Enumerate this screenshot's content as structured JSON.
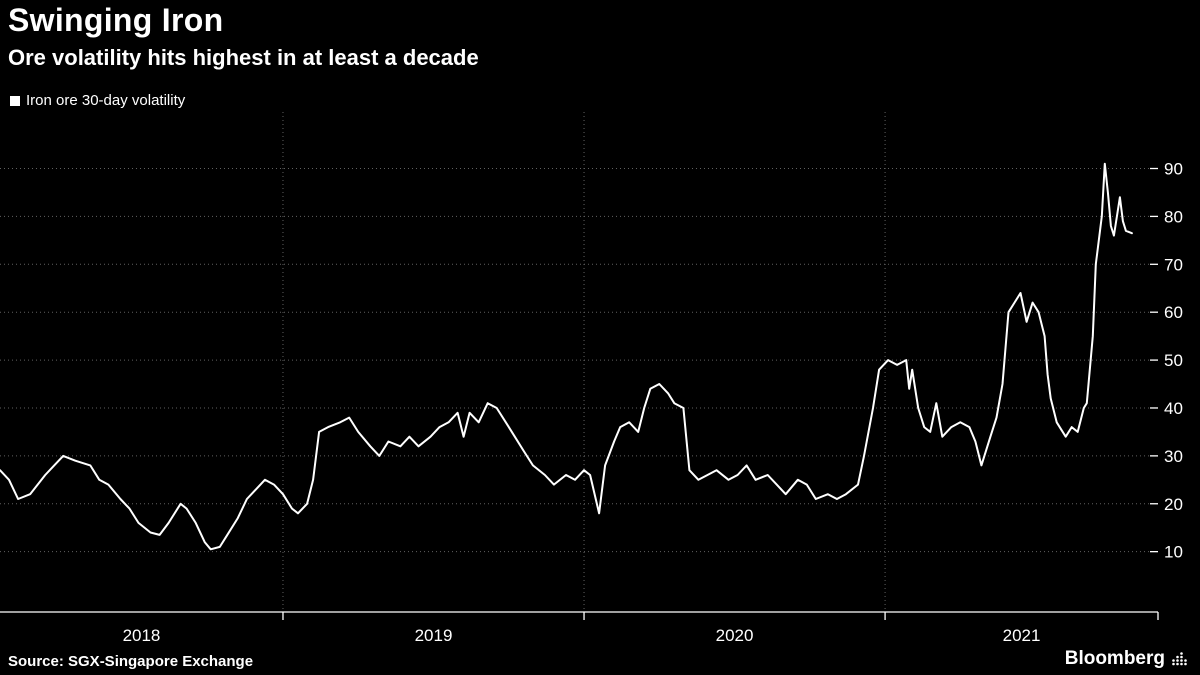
{
  "header": {
    "title": "Swinging Iron",
    "subtitle": "Ore volatility hits highest in at least a decade"
  },
  "legend": {
    "marker_icon": "square-icon",
    "label": "Iron ore 30-day volatility"
  },
  "footer": {
    "source": "Source: SGX-Singapore Exchange",
    "brand": "Bloomberg"
  },
  "colors": {
    "background": "#000000",
    "line": "#ffffff",
    "grid": "#616161",
    "text": "#ffffff"
  },
  "chart_data": {
    "type": "line",
    "title": "Swinging Iron",
    "subtitle": "Ore volatility hits highest in at least a decade",
    "source": "SGX-Singapore Exchange",
    "grid": "dotted",
    "legend_position": "top-left",
    "y_axis_side": "right",
    "x_range": [
      2018.06,
      2021.88
    ],
    "x_ticks": [
      2018,
      2019,
      2020,
      2021
    ],
    "x_tick_labels": [
      "2018",
      "2019",
      "2020",
      "2021"
    ],
    "y_ticks": [
      10,
      20,
      30,
      40,
      50,
      60,
      70,
      80,
      90
    ],
    "ylim": [
      10,
      90
    ],
    "series": [
      {
        "name": "Iron ore 30-day volatility",
        "points": [
          [
            2018.06,
            27
          ],
          [
            2018.09,
            25
          ],
          [
            2018.12,
            21
          ],
          [
            2018.16,
            22
          ],
          [
            2018.21,
            26
          ],
          [
            2018.24,
            28
          ],
          [
            2018.27,
            30
          ],
          [
            2018.31,
            29
          ],
          [
            2018.36,
            28
          ],
          [
            2018.39,
            25
          ],
          [
            2018.42,
            24
          ],
          [
            2018.46,
            21
          ],
          [
            2018.49,
            19
          ],
          [
            2018.52,
            16
          ],
          [
            2018.56,
            14
          ],
          [
            2018.59,
            13.5
          ],
          [
            2018.62,
            16
          ],
          [
            2018.66,
            20
          ],
          [
            2018.68,
            19
          ],
          [
            2018.71,
            16
          ],
          [
            2018.74,
            12
          ],
          [
            2018.76,
            10.5
          ],
          [
            2018.79,
            11
          ],
          [
            2018.81,
            13
          ],
          [
            2018.85,
            17
          ],
          [
            2018.88,
            21
          ],
          [
            2018.91,
            23
          ],
          [
            2018.94,
            25
          ],
          [
            2018.97,
            24
          ],
          [
            2019.0,
            22
          ],
          [
            2019.03,
            19
          ],
          [
            2019.05,
            18
          ],
          [
            2019.08,
            20
          ],
          [
            2019.1,
            25
          ],
          [
            2019.12,
            35
          ],
          [
            2019.15,
            36
          ],
          [
            2019.19,
            37
          ],
          [
            2019.22,
            38
          ],
          [
            2019.25,
            35
          ],
          [
            2019.29,
            32
          ],
          [
            2019.32,
            30
          ],
          [
            2019.35,
            33
          ],
          [
            2019.39,
            32
          ],
          [
            2019.42,
            34
          ],
          [
            2019.45,
            32
          ],
          [
            2019.49,
            34
          ],
          [
            2019.52,
            36
          ],
          [
            2019.55,
            37
          ],
          [
            2019.58,
            39
          ],
          [
            2019.6,
            34
          ],
          [
            2019.62,
            39
          ],
          [
            2019.65,
            37
          ],
          [
            2019.68,
            41
          ],
          [
            2019.71,
            40
          ],
          [
            2019.74,
            37
          ],
          [
            2019.77,
            34
          ],
          [
            2019.8,
            31
          ],
          [
            2019.83,
            28
          ],
          [
            2019.87,
            26
          ],
          [
            2019.9,
            24
          ],
          [
            2019.94,
            26
          ],
          [
            2019.97,
            25
          ],
          [
            2020.0,
            27
          ],
          [
            2020.02,
            26
          ],
          [
            2020.05,
            18
          ],
          [
            2020.07,
            28
          ],
          [
            2020.1,
            33
          ],
          [
            2020.12,
            36
          ],
          [
            2020.15,
            37
          ],
          [
            2020.18,
            35
          ],
          [
            2020.2,
            40
          ],
          [
            2020.22,
            44
          ],
          [
            2020.25,
            45
          ],
          [
            2020.28,
            43
          ],
          [
            2020.3,
            41
          ],
          [
            2020.33,
            40
          ],
          [
            2020.35,
            27
          ],
          [
            2020.38,
            25
          ],
          [
            2020.41,
            26
          ],
          [
            2020.44,
            27
          ],
          [
            2020.48,
            25
          ],
          [
            2020.51,
            26
          ],
          [
            2020.54,
            28
          ],
          [
            2020.57,
            25
          ],
          [
            2020.61,
            26
          ],
          [
            2020.64,
            24
          ],
          [
            2020.67,
            22
          ],
          [
            2020.71,
            25
          ],
          [
            2020.74,
            24
          ],
          [
            2020.77,
            21
          ],
          [
            2020.81,
            22
          ],
          [
            2020.84,
            21
          ],
          [
            2020.87,
            22
          ],
          [
            2020.91,
            24
          ],
          [
            2020.93,
            30
          ],
          [
            2020.96,
            40
          ],
          [
            2020.98,
            48
          ],
          [
            2021.01,
            50
          ],
          [
            2021.04,
            49
          ],
          [
            2021.07,
            50
          ],
          [
            2021.08,
            44
          ],
          [
            2021.09,
            48
          ],
          [
            2021.11,
            40
          ],
          [
            2021.13,
            36
          ],
          [
            2021.15,
            35
          ],
          [
            2021.17,
            41
          ],
          [
            2021.19,
            34
          ],
          [
            2021.22,
            36
          ],
          [
            2021.25,
            37
          ],
          [
            2021.28,
            36
          ],
          [
            2021.3,
            33
          ],
          [
            2021.32,
            28
          ],
          [
            2021.35,
            34
          ],
          [
            2021.37,
            38
          ],
          [
            2021.39,
            45
          ],
          [
            2021.41,
            60
          ],
          [
            2021.43,
            62
          ],
          [
            2021.45,
            64
          ],
          [
            2021.47,
            58
          ],
          [
            2021.49,
            62
          ],
          [
            2021.51,
            60
          ],
          [
            2021.53,
            55
          ],
          [
            2021.54,
            47
          ],
          [
            2021.55,
            42
          ],
          [
            2021.57,
            37
          ],
          [
            2021.6,
            34
          ],
          [
            2021.62,
            36
          ],
          [
            2021.64,
            35
          ],
          [
            2021.66,
            40
          ],
          [
            2021.67,
            41
          ],
          [
            2021.69,
            55
          ],
          [
            2021.7,
            70
          ],
          [
            2021.71,
            75
          ],
          [
            2021.72,
            80
          ],
          [
            2021.73,
            91
          ],
          [
            2021.74,
            85
          ],
          [
            2021.75,
            78
          ],
          [
            2021.76,
            76
          ],
          [
            2021.78,
            84
          ],
          [
            2021.79,
            79
          ],
          [
            2021.8,
            77
          ],
          [
            2021.82,
            76.5
          ]
        ]
      }
    ]
  }
}
